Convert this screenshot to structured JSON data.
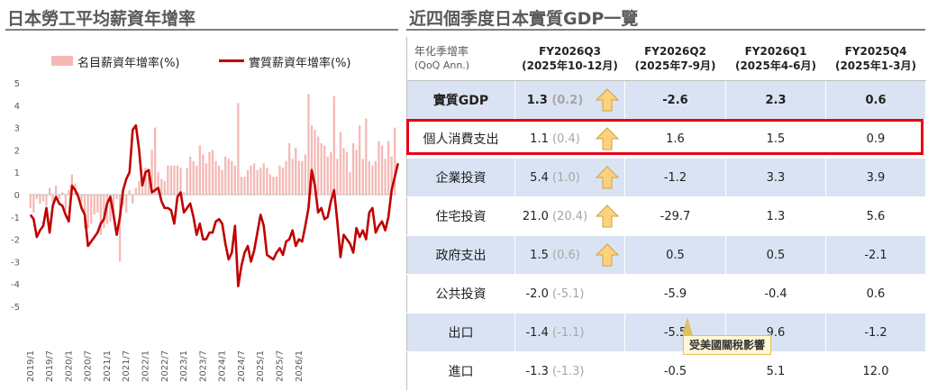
{
  "left_panel": {
    "title": "日本勞工平均薪資年增率"
  },
  "right_panel": {
    "title": "近四個季度日本實質GDP一覽"
  },
  "chart_data": {
    "type": "bar+line",
    "title": "日本勞工平均薪資年增率",
    "xlabel": "",
    "ylabel": "",
    "ylim": [
      -5,
      5
    ],
    "yticks": [
      5,
      4,
      3,
      2,
      1,
      0,
      -1,
      -2,
      -3,
      -4,
      -5
    ],
    "legend_position": "top",
    "xtick_labels": [
      "2019/1",
      "2019/7",
      "2020/1",
      "2020/7",
      "2021/1",
      "2021/7",
      "2022/1",
      "2022/7",
      "2023/1",
      "2023/7",
      "2024/1",
      "2024/7",
      "2025/1",
      "2025/7",
      "2026/1"
    ],
    "start_month": "2019/1",
    "series": [
      {
        "name": "名目薪資年增率(%)",
        "kind": "bar",
        "color": "#f4b9b5",
        "values": [
          -0.6,
          -0.8,
          -0.2,
          -0.4,
          -0.3,
          -0.5,
          0.3,
          -0.4,
          0.4,
          -0.2,
          0.1,
          -0.7,
          0.2,
          0.9,
          0.5,
          0.1,
          -0.3,
          -1.5,
          -1.5,
          -1.3,
          -0.9,
          -0.8,
          -1.8,
          -1.5,
          -1.3,
          -1.2,
          -0.9,
          -0.2,
          -3.0,
          -0.5,
          -0.8,
          0.2,
          -0.4,
          0.3,
          0.6,
          0.3,
          1.2,
          0.9,
          2.0,
          3.0,
          1.0,
          0.7,
          0.6,
          1.3,
          1.3,
          1.3,
          1.3,
          1.2,
          0.1,
          1.2,
          1.7,
          1.5,
          1.3,
          2.2,
          1.8,
          1.4,
          1.9,
          2.0,
          1.5,
          1.3,
          1.1,
          1.7,
          1.6,
          1.5,
          1.3,
          4.1,
          0.8,
          0.8,
          1.1,
          1.3,
          1.4,
          1.1,
          1.2,
          1.4,
          1.2,
          0.9,
          0.8,
          0.8,
          1.3,
          1.2,
          1.5,
          2.3,
          1.6,
          2.1,
          1.5,
          1.5,
          1.8,
          4.5,
          3.1,
          2.9,
          2.6,
          2.3,
          2.2,
          1.7,
          1.9,
          4.4,
          1.6,
          2.8,
          2.1,
          1.9,
          1.0,
          2.3,
          2.0,
          3.1,
          1.6,
          3.4,
          1.5,
          1.3,
          1.5,
          2.4,
          2.2,
          1.6,
          2.4,
          1.7,
          3.0
        ]
      },
      {
        "name": "實質薪資年增率(%)",
        "kind": "line",
        "color": "#c00000",
        "values": [
          -0.9,
          -1.1,
          -1.9,
          -1.6,
          -1.4,
          -0.6,
          -1.7,
          -0.5,
          -0.1,
          -0.4,
          -0.5,
          -0.9,
          -1.2,
          0.4,
          0.2,
          -0.1,
          -0.6,
          -0.9,
          -2.3,
          -2.1,
          -1.9,
          -1.7,
          -1.3,
          -1.1,
          -0.4,
          -0.1,
          -0.9,
          -1.8,
          -1.0,
          0.2,
          0.7,
          1.0,
          2.9,
          3.1,
          2.0,
          0.4,
          1.0,
          1.1,
          0.1,
          0.2,
          0.3,
          -0.3,
          -0.6,
          -0.6,
          -0.7,
          -1.3,
          -0.1,
          0.1,
          -0.8,
          -0.6,
          -0.4,
          -1.0,
          -1.8,
          -1.3,
          -2.0,
          -2.0,
          -1.7,
          -1.7,
          -1.2,
          -1.1,
          -1.3,
          -2.2,
          -2.9,
          -2.6,
          -1.4,
          -4.1,
          -3.2,
          -2.6,
          -2.3,
          -3.0,
          -2.5,
          -1.7,
          -0.9,
          -1.4,
          -2.7,
          -2.8,
          -2.9,
          -2.6,
          -2.4,
          -2.7,
          -2.1,
          -2.0,
          -1.6,
          -2.3,
          -2.0,
          -2.1,
          -1.4,
          -0.6,
          1.1,
          0.4,
          -0.8,
          -0.6,
          -1.1,
          -1.0,
          -0.3,
          0.2,
          -1.2,
          -2.8,
          -1.8,
          -2.0,
          -2.2,
          -2.6,
          -1.5,
          -1.9,
          -1.6,
          -2.0,
          -0.8,
          -0.6,
          -1.7,
          -1.4,
          -1.2,
          -1.6,
          -1.0,
          0.2,
          0.8,
          1.4
        ]
      }
    ]
  },
  "table": {
    "header_label_line1": "年化季增率",
    "header_label_line2": "(QoQ Ann.)",
    "columns": [
      {
        "line1": "FY2026Q3",
        "line2": "(2025年10-12月)"
      },
      {
        "line1": "FY2026Q2",
        "line2": "(2025年7-9月)"
      },
      {
        "line1": "FY2026Q1",
        "line2": "(2025年4-6月)"
      },
      {
        "line1": "FY2025Q4",
        "line2": "(2025年1-3月)"
      }
    ],
    "rows": [
      {
        "label": "實質GDP",
        "q3": "1.3",
        "q3_prev": "(0.2)",
        "arrow": true,
        "q2": "-2.6",
        "q1": "2.3",
        "q4": "0.6",
        "bold": true
      },
      {
        "label": "個人消費支出",
        "q3": "1.1",
        "q3_prev": "(0.4)",
        "arrow": true,
        "q2": "1.6",
        "q1": "1.5",
        "q4": "0.9",
        "bold": false
      },
      {
        "label": "企業投資",
        "q3": "5.4",
        "q3_prev": "(1.0)",
        "arrow": true,
        "q2": "-1.2",
        "q1": "3.3",
        "q4": "3.9",
        "bold": false
      },
      {
        "label": "住宅投資",
        "q3": "21.0",
        "q3_prev": "(20.4)",
        "arrow": true,
        "q2": "-29.7",
        "q1": "1.3",
        "q4": "5.6",
        "bold": false
      },
      {
        "label": "政府支出",
        "q3": "1.5",
        "q3_prev": "(0.6)",
        "arrow": true,
        "q2": "0.5",
        "q1": "0.5",
        "q4": "-2.1",
        "bold": false
      },
      {
        "label": "公共投資",
        "q3": "-2.0",
        "q3_prev": "(-5.1)",
        "arrow": false,
        "q2": "-5.9",
        "q1": "-0.4",
        "q4": "0.6",
        "bold": false
      },
      {
        "label": "出口",
        "q3": "-1.4",
        "q3_prev": "(-1.1)",
        "arrow": false,
        "q2": "-5.5",
        "q1": "9.6",
        "q4": "-1.2",
        "bold": false
      },
      {
        "label": "進口",
        "q3": "-1.3",
        "q3_prev": "(-1.3)",
        "arrow": false,
        "q2": "-0.5",
        "q1": "5.1",
        "q4": "12.0",
        "bold": false
      }
    ],
    "callout": "受美國關稅影響",
    "highlight_color": "#e60012",
    "arrow_color": "#ffd27a",
    "shade_color": "#dae3f3"
  }
}
